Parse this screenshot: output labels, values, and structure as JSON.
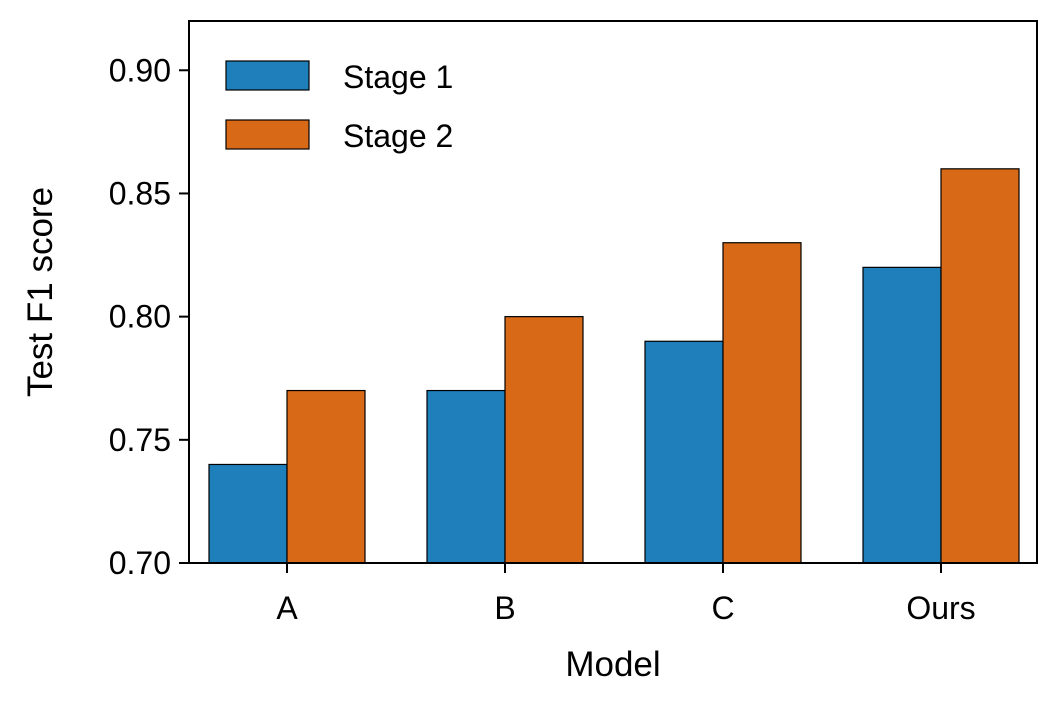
{
  "chart_data": {
    "type": "bar",
    "title": "",
    "xlabel": "Model",
    "ylabel": "Test F1 score",
    "categories": [
      "A",
      "B",
      "C",
      "Ours"
    ],
    "series": [
      {
        "name": "Stage 1",
        "color": "#1f7fba",
        "values": [
          0.74,
          0.77,
          0.79,
          0.82
        ]
      },
      {
        "name": "Stage 2",
        "color": "#d86a17",
        "values": [
          0.77,
          0.8,
          0.83,
          0.86
        ]
      }
    ],
    "ylim": [
      0.7,
      0.92
    ],
    "yticks": [
      "0.70",
      "0.75",
      "0.80",
      "0.85",
      "0.90"
    ],
    "grid": false,
    "legend": "top-left"
  }
}
